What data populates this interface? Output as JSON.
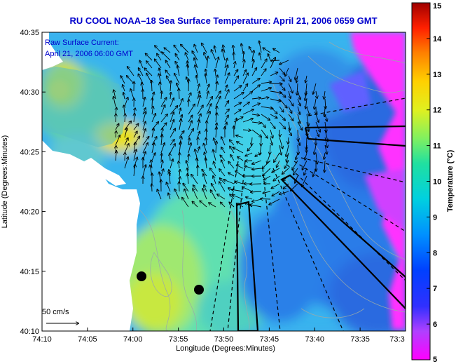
{
  "chart_data": {
    "type": "heatmap",
    "title": "RU COOL  NOAA–18  Sea Surface Temperature:  April 21, 2006 0659 GMT",
    "xlabel": "Longitude (Degrees:Minutes)",
    "ylabel": "Latitude (Degrees:Minutes)",
    "colorbar_label": "Temperature (°C)",
    "x_ticks": [
      "74:10",
      "74:05",
      "74:00",
      "73:55",
      "73:50",
      "73:45",
      "73:40",
      "73:35",
      "73:3"
    ],
    "y_ticks": [
      "40:35",
      "40:30",
      "40:25",
      "40:20",
      "40:15",
      "40:10"
    ],
    "colorbar_ticks": [
      "15",
      "14",
      "13",
      "12",
      "11",
      "10",
      "9",
      "8",
      "7",
      "6",
      "5"
    ],
    "colorbar_range": [
      5,
      15
    ],
    "overlay": {
      "label_line1": "Raw Surface Current:",
      "label_line2": "April 21, 2006 06:00 GMT",
      "scale_label": "50 cm/s"
    },
    "colors": {
      "title": "#0000cc",
      "land": "#ffffff",
      "shelf_warm": "#c8e840",
      "offshore_cool": "#2a7be8",
      "cold_edge": "#ff33ff"
    }
  }
}
